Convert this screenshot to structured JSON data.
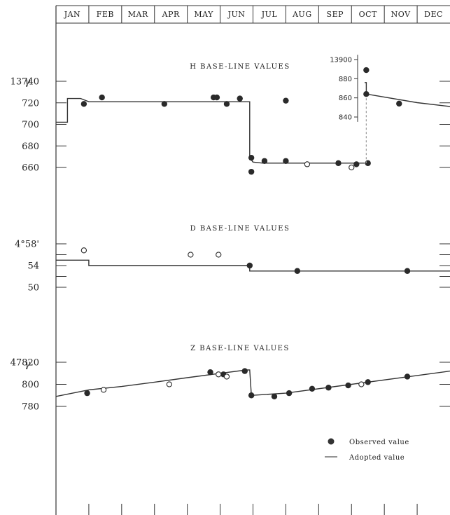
{
  "chart_data": [
    {
      "type": "line",
      "id": "h",
      "title": "H BASE-LINE VALUES",
      "unit": "γ",
      "x_categories": [
        "JAN",
        "FEB",
        "MAR",
        "APR",
        "MAY",
        "JUN",
        "JUL",
        "AUG",
        "SEP",
        "OCT",
        "NOV",
        "DEC"
      ],
      "x_range": [
        0,
        12
      ],
      "y_range": [
        13655,
        13760
      ],
      "tick_labels": [
        {
          "v": 13740,
          "t": "13740"
        },
        {
          "v": 13720,
          "t": "720"
        },
        {
          "v": 13700,
          "t": "700"
        },
        {
          "v": 13680,
          "t": "680"
        },
        {
          "v": 13660,
          "t": "660"
        }
      ],
      "adopted": [
        [
          0,
          13702
        ],
        [
          0.35,
          13702
        ],
        [
          0.35,
          13724
        ],
        [
          0.75,
          13724
        ],
        [
          1,
          13721
        ],
        [
          5.9,
          13721
        ],
        [
          5.9,
          13669
        ],
        [
          6,
          13665
        ],
        [
          6.3,
          13664
        ],
        [
          9.4,
          13664
        ]
      ],
      "observed_filled": [
        [
          0.85,
          13719
        ],
        [
          1.4,
          13725
        ],
        [
          3.3,
          13719
        ],
        [
          4.8,
          13725
        ],
        [
          4.9,
          13725
        ],
        [
          5.2,
          13719
        ],
        [
          5.6,
          13724
        ],
        [
          5.95,
          13669
        ],
        [
          5.95,
          13656
        ],
        [
          6.35,
          13666
        ],
        [
          7.0,
          13666
        ],
        [
          8.6,
          13664
        ],
        [
          9.15,
          13663
        ],
        [
          9.5,
          13664
        ],
        [
          7.0,
          13722
        ]
      ],
      "observed_open": [
        [
          7.65,
          13663
        ],
        [
          9.0,
          13660
        ]
      ],
      "inset": {
        "x_range": [
          9.4,
          12
        ],
        "y_range": [
          13835,
          13905
        ],
        "tick_labels": [
          {
            "v": 13900,
            "t": "13900"
          },
          {
            "v": 13880,
            "t": "880"
          },
          {
            "v": 13860,
            "t": "860"
          },
          {
            "v": 13840,
            "t": "840"
          }
        ],
        "adopted": [
          [
            9.4,
            13876
          ],
          [
            9.45,
            13876
          ],
          [
            9.45,
            13864
          ],
          [
            11,
            13855
          ],
          [
            12,
            13851
          ]
        ],
        "observed_filled": [
          [
            9.45,
            13889
          ],
          [
            9.45,
            13864
          ],
          [
            10.45,
            13854
          ]
        ]
      }
    },
    {
      "type": "line",
      "id": "d",
      "title": "D BASE-LINE VALUES",
      "x_categories": [
        "JAN",
        "FEB",
        "MAR",
        "APR",
        "MAY",
        "JUN",
        "JUL",
        "AUG",
        "SEP",
        "OCT",
        "NOV",
        "DEC"
      ],
      "x_range": [
        0,
        12
      ],
      "y_range": [
        49,
        59
      ],
      "tick_labels": [
        {
          "v": 58,
          "t": "4°58'"
        },
        {
          "v": 54,
          "t": "54"
        },
        {
          "v": 50,
          "t": "50"
        }
      ],
      "adopted": [
        [
          0,
          55
        ],
        [
          1,
          55
        ],
        [
          1,
          54
        ],
        [
          5.9,
          54
        ],
        [
          5.9,
          53
        ],
        [
          12,
          53
        ]
      ],
      "observed_filled": [
        [
          5.9,
          54
        ],
        [
          7.35,
          53
        ],
        [
          10.7,
          53
        ]
      ],
      "observed_open": [
        [
          0.85,
          56.8
        ],
        [
          4.1,
          56
        ],
        [
          4.95,
          56
        ]
      ]
    },
    {
      "type": "line",
      "id": "z",
      "title": "Z BASE-LINE VALUES",
      "unit": "γ",
      "x_categories": [
        "JAN",
        "FEB",
        "MAR",
        "APR",
        "MAY",
        "JUN",
        "JUL",
        "AUG",
        "SEP",
        "OCT",
        "NOV",
        "DEC"
      ],
      "x_range": [
        0,
        12
      ],
      "y_range": [
        47745,
        47830
      ],
      "tick_labels": [
        {
          "v": 47820,
          "t": "47820"
        },
        {
          "v": 47800,
          "t": "800"
        },
        {
          "v": 47780,
          "t": "780"
        }
      ],
      "adopted": [
        [
          0,
          47789
        ],
        [
          1,
          47795
        ],
        [
          2,
          47798
        ],
        [
          3,
          47802
        ],
        [
          4,
          47806
        ],
        [
          5,
          47810
        ],
        [
          5.8,
          47813
        ],
        [
          5.9,
          47813
        ],
        [
          5.95,
          47790
        ],
        [
          7,
          47792
        ],
        [
          9,
          47800
        ],
        [
          11,
          47808
        ],
        [
          12,
          47812
        ]
      ],
      "observed_filled": [
        [
          0.95,
          47792
        ],
        [
          4.7,
          47811
        ],
        [
          5.1,
          47809
        ],
        [
          5.75,
          47812
        ],
        [
          5.95,
          47790
        ],
        [
          6.65,
          47789
        ],
        [
          7.1,
          47792
        ],
        [
          7.8,
          47796
        ],
        [
          8.3,
          47797
        ],
        [
          8.9,
          47799
        ],
        [
          9.5,
          47802
        ],
        [
          10.7,
          47807
        ]
      ],
      "observed_open": [
        [
          1.45,
          47795
        ],
        [
          3.45,
          47800
        ],
        [
          4.95,
          47809
        ],
        [
          5.2,
          47807
        ],
        [
          9.3,
          47800
        ]
      ]
    }
  ],
  "legend": {
    "observed": "Observed value",
    "adopted": "Adopted value"
  }
}
